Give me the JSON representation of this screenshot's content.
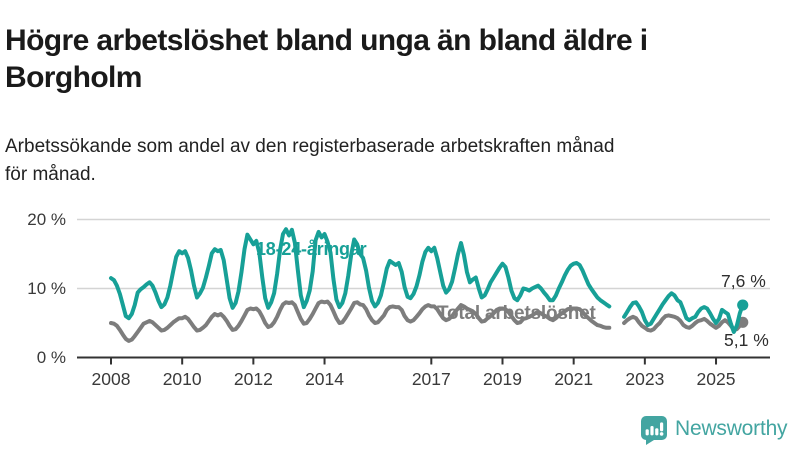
{
  "header": {
    "title": "Högre arbetslöshet bland unga än bland äldre i Borgholm",
    "subtitle_lines": [
      "Arbetssökande som andel av den registerbaserade arbetskraften månad",
      "för månad."
    ]
  },
  "branding": {
    "logo_text": "Newsworthy",
    "logo_icon": "bar-chart-speech-bubble-icon",
    "brand_color": "#43a5a1"
  },
  "chart_data": {
    "type": "line",
    "title": "Högre arbetslöshet bland unga än bland äldre i Borgholm",
    "subtitle": "Arbetssökande som andel av den registerbaserade arbetskraften månad för månad.",
    "unit": "%",
    "frequency": "monthly",
    "x_start": "2008-01",
    "x_end": "2025-10",
    "data_gap": "2022-02 till 2022-05",
    "ylim": [
      0,
      20
    ],
    "y_ticks": [
      0,
      10,
      20
    ],
    "y_tick_labels": [
      "0 %",
      "10 %",
      "20 %"
    ],
    "x_ticks": [
      2008,
      2010,
      2012,
      2014,
      2017,
      2019,
      2021,
      2023,
      2025
    ],
    "x_tick_labels": [
      "2008",
      "2010",
      "2012",
      "2014",
      "2017",
      "2019",
      "2021",
      "2023",
      "2025"
    ],
    "grid": "horizontal",
    "legend_position": "inline-labels",
    "axis_color": "#333333",
    "grid_color": "#d4d4d4",
    "series": [
      {
        "name": "18-24-åringar",
        "color": "#17a097",
        "end_value": 7.6,
        "end_label": "7,6 %",
        "values": [
          11.5,
          11.2,
          10.4,
          9.2,
          7.6,
          6.0,
          5.7,
          6.3,
          7.6,
          9.4,
          9.9,
          10.2,
          10.6,
          10.9,
          10.4,
          9.4,
          8.2,
          7.3,
          7.7,
          8.7,
          10.4,
          12.6,
          14.6,
          15.4,
          15.1,
          15.4,
          14.4,
          12.6,
          10.4,
          8.7,
          9.3,
          10.1,
          11.6,
          13.3,
          15.1,
          15.7,
          15.4,
          15.6,
          14.1,
          11.3,
          8.6,
          7.2,
          7.9,
          9.6,
          12.4,
          15.7,
          17.8,
          17.1,
          16.4,
          16.9,
          15.2,
          11.6,
          8.6,
          7.2,
          8.0,
          9.3,
          12.1,
          15.6,
          17.9,
          18.6,
          17.7,
          18.5,
          16.6,
          12.7,
          9.0,
          7.3,
          8.2,
          9.7,
          12.5,
          17.0,
          18.2,
          17.4,
          17.9,
          16.8,
          15.2,
          11.4,
          8.4,
          7.3,
          7.9,
          9.3,
          11.9,
          14.9,
          17.1,
          16.4,
          15.0,
          14.4,
          12.6,
          10.1,
          8.2,
          7.4,
          7.9,
          9.0,
          10.9,
          12.9,
          14.0,
          13.7,
          13.4,
          13.7,
          12.4,
          10.2,
          8.8,
          8.6,
          9.2,
          10.3,
          11.9,
          13.9,
          15.3,
          15.9,
          15.4,
          15.9,
          14.4,
          12.4,
          10.4,
          9.4,
          9.9,
          11.0,
          12.9,
          15.0,
          16.6,
          14.9,
          12.4,
          10.9,
          11.3,
          11.6,
          10.0,
          8.7,
          9.0,
          9.9,
          10.9,
          11.6,
          12.3,
          13.0,
          13.6,
          13.1,
          11.6,
          9.7,
          8.6,
          8.3,
          9.0,
          10.0,
          9.9,
          9.7,
          10.0,
          10.2,
          10.4,
          10.0,
          9.4,
          8.9,
          8.3,
          8.3,
          9.0,
          10.0,
          10.9,
          11.9,
          12.7,
          13.3,
          13.6,
          13.7,
          13.4,
          12.6,
          11.6,
          10.6,
          9.9,
          9.3,
          8.7,
          8.3,
          8.0,
          7.7,
          7.4,
          null,
          null,
          null,
          null,
          5.9,
          6.6,
          7.3,
          7.9,
          8.0,
          7.4,
          6.6,
          5.4,
          4.7,
          4.9,
          5.6,
          6.3,
          7.0,
          7.7,
          8.3,
          8.9,
          9.3,
          9.0,
          8.3,
          8.0,
          6.9,
          5.7,
          5.4,
          5.7,
          5.9,
          6.6,
          7.1,
          7.3,
          7.1,
          6.4,
          5.6,
          5.0,
          5.6,
          6.9,
          6.6,
          6.3,
          4.9,
          3.7,
          4.6,
          6.4,
          7.6
        ]
      },
      {
        "name": "Total arbetslöshet",
        "color": "#7d7d7d",
        "end_value": 5.1,
        "end_label": "5,1 %",
        "values": [
          5.0,
          4.9,
          4.6,
          4.0,
          3.3,
          2.7,
          2.4,
          2.6,
          3.1,
          3.7,
          4.3,
          4.9,
          5.1,
          5.3,
          5.1,
          4.7,
          4.3,
          3.9,
          4.0,
          4.3,
          4.7,
          5.1,
          5.4,
          5.7,
          5.7,
          5.9,
          5.6,
          5.0,
          4.4,
          3.9,
          4.0,
          4.3,
          4.7,
          5.3,
          5.9,
          6.3,
          6.1,
          6.3,
          5.9,
          5.3,
          4.6,
          4.0,
          4.1,
          4.6,
          5.3,
          6.1,
          6.9,
          7.1,
          7.0,
          7.1,
          6.7,
          5.9,
          5.0,
          4.4,
          4.6,
          5.1,
          5.9,
          6.9,
          7.7,
          8.0,
          7.9,
          8.0,
          7.6,
          6.6,
          5.6,
          4.9,
          5.0,
          5.6,
          6.3,
          7.1,
          7.9,
          8.1,
          8.0,
          8.1,
          7.6,
          6.7,
          5.7,
          5.0,
          5.1,
          5.7,
          6.4,
          7.1,
          7.9,
          8.0,
          7.7,
          7.6,
          7.0,
          6.1,
          5.4,
          5.0,
          5.1,
          5.6,
          6.1,
          6.9,
          7.3,
          7.4,
          7.3,
          7.3,
          6.9,
          6.0,
          5.4,
          5.2,
          5.4,
          5.9,
          6.4,
          7.0,
          7.4,
          7.6,
          7.4,
          7.4,
          7.0,
          6.3,
          5.7,
          5.4,
          5.6,
          6.0,
          6.6,
          7.1,
          7.6,
          7.4,
          7.1,
          6.9,
          6.7,
          6.3,
          5.7,
          5.2,
          5.3,
          5.7,
          6.0,
          6.4,
          6.9,
          7.1,
          7.1,
          7.0,
          6.6,
          6.0,
          5.4,
          5.0,
          5.1,
          5.6,
          5.7,
          5.9,
          6.1,
          6.4,
          6.6,
          6.4,
          6.1,
          5.9,
          5.6,
          5.4,
          5.7,
          6.1,
          6.4,
          6.7,
          7.0,
          7.1,
          7.1,
          7.1,
          7.0,
          6.6,
          6.1,
          5.7,
          5.3,
          5.0,
          4.7,
          4.6,
          4.4,
          4.3,
          4.3,
          null,
          null,
          null,
          null,
          5.0,
          5.4,
          5.7,
          5.9,
          5.7,
          5.1,
          4.6,
          4.3,
          4.0,
          3.9,
          4.1,
          4.6,
          5.0,
          5.6,
          6.0,
          6.1,
          6.0,
          5.9,
          5.7,
          5.3,
          4.7,
          4.4,
          4.3,
          4.6,
          5.0,
          5.3,
          5.4,
          5.6,
          5.3,
          4.9,
          4.6,
          4.3,
          4.6,
          5.1,
          5.4,
          5.1,
          4.6,
          4.0,
          4.1,
          4.6,
          5.1
        ]
      }
    ]
  }
}
